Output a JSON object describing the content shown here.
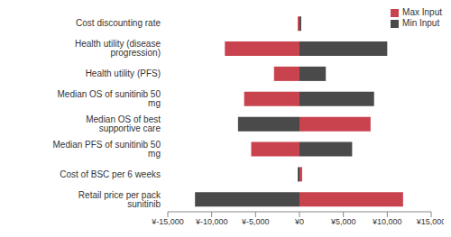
{
  "chart_data": {
    "type": "bar",
    "orientation": "horizontal",
    "stacked": true,
    "legend": "upper right",
    "grid": false,
    "categories": [
      "Cost discounting rate",
      "Health utility (disease progression)",
      "Health utility (PFS)",
      "Median OS of sunitinib 50 mg",
      "Median OS of best supportive care",
      "Median PFS of sunitinib 50 mg",
      "Cost of BSC per 6 weeks",
      "Retail price per pack sunitinib"
    ],
    "series": [
      {
        "name": "Max Input",
        "color": "#c9434f",
        "values": [
          -200,
          -8500,
          -2900,
          -6300,
          8100,
          -5500,
          300,
          11800
        ]
      },
      {
        "name": "Min Input",
        "color": "#4a4a4a",
        "values": [
          200,
          10000,
          3000,
          8500,
          -7000,
          6000,
          -200,
          -11900
        ]
      }
    ],
    "xlim": [
      -15000,
      15000
    ],
    "xticks": [
      {
        "value": -15000,
        "label": "¥-15,000"
      },
      {
        "value": -10000,
        "label": "¥-10,000"
      },
      {
        "value": -5000,
        "label": "¥-5,000"
      },
      {
        "value": 0,
        "label": "¥0"
      },
      {
        "value": 5000,
        "label": "¥5,000"
      },
      {
        "value": 10000,
        "label": "¥10,000"
      },
      {
        "value": 15000,
        "label": "¥15,000"
      }
    ]
  }
}
